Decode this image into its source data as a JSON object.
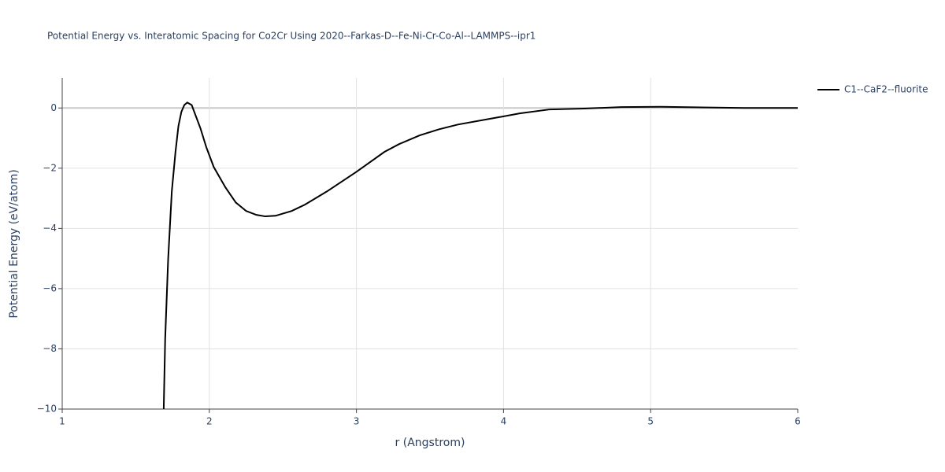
{
  "chart_data": {
    "type": "line",
    "title": "Potential Energy vs. Interatomic Spacing for Co2Cr Using 2020--Farkas-D--Fe-Ni-Cr-Co-Al--LAMMPS--ipr1",
    "x_label": "r (Angstrom)",
    "y_label": "Potential Energy (eV/atom)",
    "xlim": [
      1,
      6
    ],
    "ylim": [
      -10,
      1
    ],
    "xticks": [
      1,
      2,
      3,
      4,
      5,
      6
    ],
    "yticks": [
      0,
      {
        "value": -2,
        "label": "−2"
      },
      {
        "value": -4,
        "label": "−4"
      },
      {
        "value": -6,
        "label": "−6"
      },
      {
        "value": -8,
        "label": "−8"
      },
      {
        "value": -10,
        "label": "−10"
      }
    ],
    "grid": true,
    "legend": "top-right",
    "series": [
      {
        "name": "C1--CaF2--fluorite",
        "color": "#000000",
        "x": [
          1.69,
          1.7,
          1.72,
          1.745,
          1.77,
          1.79,
          1.81,
          1.83,
          1.85,
          1.88,
          1.9,
          1.94,
          1.98,
          2.03,
          2.11,
          2.18,
          2.25,
          2.32,
          2.38,
          2.45,
          2.56,
          2.65,
          2.8,
          3.0,
          3.19,
          3.29,
          3.43,
          3.56,
          3.69,
          3.93,
          4.11,
          4.31,
          4.55,
          4.8,
          5.07,
          5.64,
          6.0
        ],
        "values": [
          -10.0,
          -7.66,
          -5.04,
          -2.77,
          -1.46,
          -0.6,
          -0.13,
          0.1,
          0.18,
          0.1,
          -0.16,
          -0.68,
          -1.31,
          -1.96,
          -2.64,
          -3.14,
          -3.42,
          -3.55,
          -3.6,
          -3.58,
          -3.42,
          -3.21,
          -2.77,
          -2.12,
          -1.46,
          -1.2,
          -0.91,
          -0.71,
          -0.55,
          -0.34,
          -0.18,
          -0.05,
          -0.02,
          0.03,
          0.04,
          0.0,
          0.0
        ]
      }
    ]
  }
}
